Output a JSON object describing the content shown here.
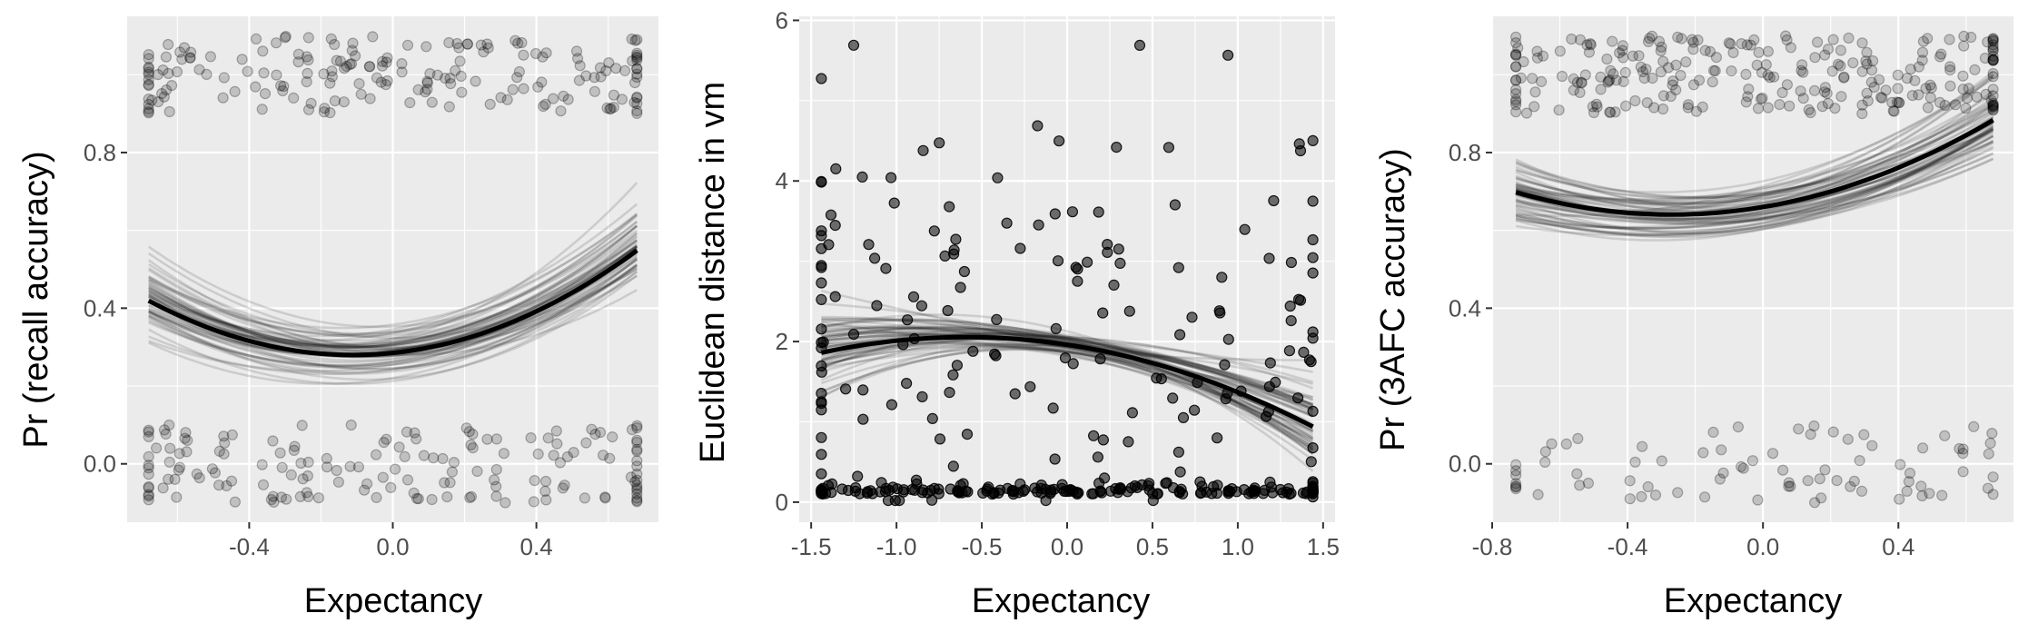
{
  "chart_data": [
    {
      "type": "scatter",
      "xlabel": "Expectancy",
      "ylabel": "Pr (recall accuracy)",
      "xlim": [
        -0.74,
        0.74
      ],
      "ylim": [
        -0.15,
        1.15
      ],
      "xticks": [
        -0.4,
        0.0,
        0.4
      ],
      "xtick_labels": [
        "-0.4",
        "0.0",
        "0.4"
      ],
      "yticks": [
        0.0,
        0.4,
        0.8
      ],
      "ytick_labels": [
        "0.0",
        "0.4",
        "0.8"
      ],
      "grid": true,
      "points": {
        "point_opacity": 0.18,
        "groups": [
          {
            "y": 1.0,
            "jitter": 0.1,
            "count": 190,
            "seed": 11
          },
          {
            "y": 0.0,
            "jitter": 0.1,
            "count": 160,
            "seed": 23
          }
        ],
        "x_range": [
          -0.68,
          0.68
        ]
      },
      "fit": {
        "x_range": [
          -0.68,
          0.68
        ],
        "coef": [
          0.285,
          0.095,
          0.43
        ],
        "draws": 60,
        "band": 0.075
      }
    },
    {
      "type": "scatter",
      "xlabel": "Expectancy",
      "ylabel": "Euclidean distance in vm",
      "xlim": [
        -1.57,
        1.57
      ],
      "ylim": [
        -0.25,
        6.05
      ],
      "xticks": [
        -1.5,
        -1.0,
        -0.5,
        0.0,
        0.5,
        1.0,
        1.5
      ],
      "xtick_labels": [
        "-1.5",
        "-1.0",
        "-0.5",
        "0.0",
        "0.5",
        "1.0",
        "1.5"
      ],
      "yticks": [
        0,
        2,
        4,
        6
      ],
      "ytick_labels": [
        "0",
        "2",
        "4",
        "6"
      ],
      "grid": true,
      "points": {
        "point_opacity": 0.55,
        "x_range": [
          -1.44,
          1.44
        ],
        "clusters": [
          {
            "y_mean": 0.1,
            "y_sd": 0.06,
            "count": 180,
            "seed": 5
          },
          {
            "y_mean": 2.2,
            "y_sd": 1.3,
            "count": 170,
            "seed": 7
          }
        ],
        "edge_x": [
          -1.44,
          1.44
        ]
      },
      "fit": {
        "x_range": [
          -1.44,
          1.44
        ],
        "coef": [
          1.96,
          -0.32,
          -0.27
        ],
        "draws": 60,
        "band": 0.18
      }
    },
    {
      "type": "scatter",
      "xlabel": "Expectancy",
      "ylabel": "Pr (3AFC accuracy)",
      "xlim": [
        -0.8,
        0.74
      ],
      "ylim": [
        -0.15,
        1.15
      ],
      "xticks": [
        -0.8,
        -0.4,
        0.0,
        0.4
      ],
      "xtick_labels": [
        "-0.8",
        "-0.4",
        "0.0",
        "0.4"
      ],
      "yticks": [
        0.0,
        0.4,
        0.8
      ],
      "ytick_labels": [
        "0.0",
        "0.4",
        "0.8"
      ],
      "grid": true,
      "points": {
        "point_opacity": 0.18,
        "groups": [
          {
            "y": 1.0,
            "jitter": 0.1,
            "count": 260,
            "seed": 31
          },
          {
            "y": 0.0,
            "jitter": 0.1,
            "count": 80,
            "seed": 41
          }
        ],
        "x_range": [
          -0.73,
          0.68
        ]
      },
      "fit": {
        "x_range": [
          -0.73,
          0.68
        ],
        "coef": [
          0.66,
          0.145,
          0.27
        ],
        "draws": 60,
        "band": 0.065
      }
    }
  ]
}
